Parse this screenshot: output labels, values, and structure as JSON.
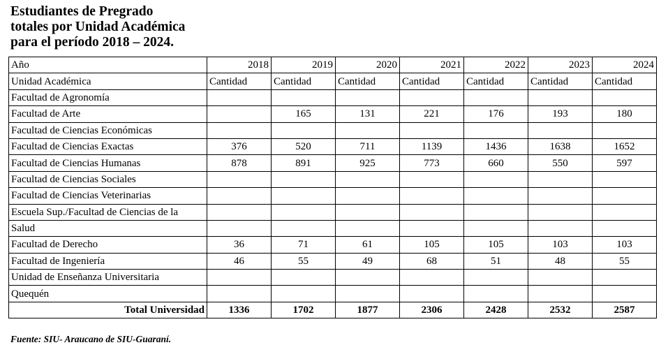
{
  "header": {
    "title": [
      "Estudiantes de Pregrado",
      "totales por Unidad Académica",
      "para el período 2018 – 2024."
    ]
  },
  "table": {
    "year_label": "Año",
    "years": [
      2018,
      2019,
      2020,
      2021,
      2022,
      2023,
      2024
    ],
    "unit_label": "Unidad Académica",
    "measure": [
      "Cantidad",
      "Cantidad",
      "Cantidad",
      "Cantidad",
      "Cantidad",
      "Cantidad",
      "Cantidad"
    ],
    "rows": [
      {
        "label": "Facultad de Agronomía",
        "values": [
          null,
          null,
          null,
          null,
          null,
          null,
          null
        ]
      },
      {
        "label": "Facultad de Arte",
        "values": [
          null,
          165,
          131,
          221,
          176,
          193,
          180
        ]
      },
      {
        "label": "Facultad de Ciencias Económicas",
        "values": [
          null,
          null,
          null,
          null,
          null,
          null,
          null
        ]
      },
      {
        "label": "Facultad de Ciencias Exactas",
        "values": [
          376,
          520,
          711,
          1139,
          1436,
          1638,
          1652
        ]
      },
      {
        "label": "Facultad de Ciencias Humanas",
        "values": [
          878,
          891,
          925,
          773,
          660,
          550,
          597
        ]
      },
      {
        "label": "Facultad de Ciencias Sociales",
        "values": [
          null,
          null,
          null,
          null,
          null,
          null,
          null
        ]
      },
      {
        "label": "Facultad de Ciencias Veterinarias",
        "values": [
          null,
          null,
          null,
          null,
          null,
          null,
          null
        ]
      },
      {
        "label": "Escuela Sup./Facultad de Ciencias de la",
        "values": [
          null,
          null,
          null,
          null,
          null,
          null,
          null
        ]
      },
      {
        "label": "Salud",
        "values": [
          null,
          null,
          null,
          null,
          null,
          null,
          null
        ]
      },
      {
        "label": "Facultad de Derecho",
        "values": [
          36,
          71,
          61,
          105,
          105,
          103,
          103
        ]
      },
      {
        "label": "Facultad de Ingeniería",
        "values": [
          46,
          55,
          49,
          68,
          51,
          48,
          55
        ]
      },
      {
        "label": "Unidad de Enseñanza Universitaria",
        "values": [
          null,
          null,
          null,
          null,
          null,
          null,
          null
        ]
      },
      {
        "label": "Quequén",
        "values": [
          null,
          null,
          null,
          null,
          null,
          null,
          null
        ]
      }
    ],
    "total": {
      "label": "Total Universidad",
      "values": [
        1336,
        1702,
        1877,
        2306,
        2428,
        2532,
        2587
      ]
    }
  },
  "footer": {
    "source": "Fuente: SIU- Araucano de SIU-Guaraní."
  }
}
